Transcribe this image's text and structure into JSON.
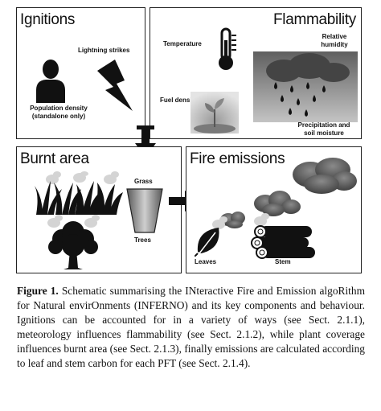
{
  "panels": {
    "ignitions": {
      "title": "Ignitions",
      "lightning_label": "Lightning strikes",
      "population_label_1": "Population density",
      "population_label_2": "(standalone only)"
    },
    "flammability": {
      "title": "Flammability",
      "temperature_label": "Temperature",
      "humidity_label_1": "Relative",
      "humidity_label_2": "humidity",
      "fuel_label": "Fuel density",
      "precip_label_1": "Precipitation and",
      "precip_label_2": "soil moisture"
    },
    "burnt_area": {
      "title": "Burnt area",
      "grass_label": "Grass",
      "trees_label": "Trees"
    },
    "fire_emissions": {
      "title": "Fire emissions",
      "leaves_label": "Leaves",
      "stem_label": "Stem"
    }
  },
  "caption": {
    "lead": "Figure 1.",
    "text": "Schematic summarising the INteractive Fire and Emission algoRithm for Natural envirOnments (INFERNO) and its key components and behaviour. Ignitions can be accounted for in a variety of ways (see Sect. 2.1.1), meteorology influences flammability (see Sect. 2.1.2), while plant coverage influences burnt area (see Sect. 2.1.3), finally emissions are calculated according to leaf and stem carbon for each PFT (see Sect. 2.1.4)."
  },
  "colors": {
    "border": "#222222",
    "icon": "#111111",
    "cloud": "#555555",
    "smoke": "#c8c8c8"
  }
}
